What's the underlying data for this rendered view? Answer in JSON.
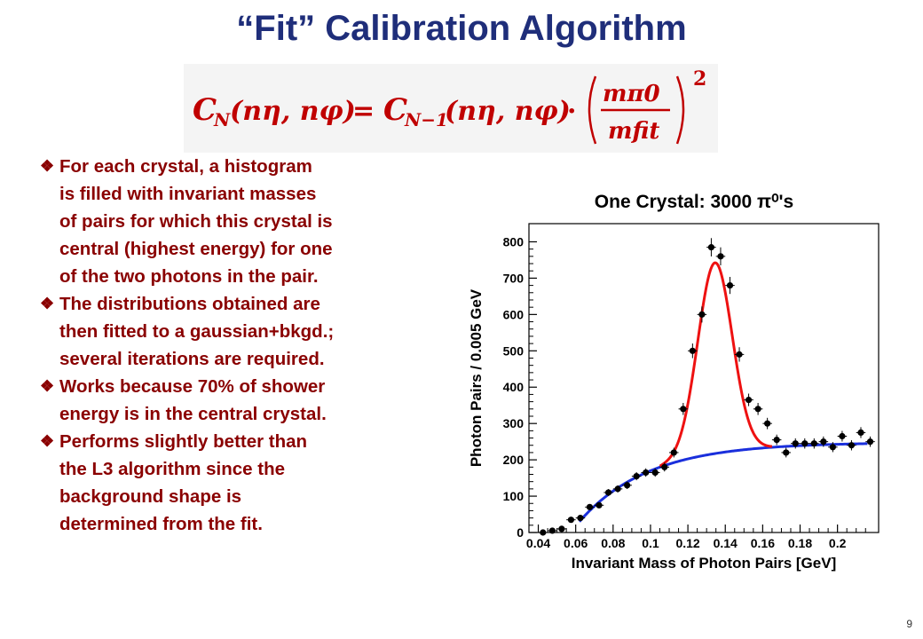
{
  "slide": {
    "title": "“Fit” Calibration Algorithm",
    "page_number": "9"
  },
  "formula": {
    "lhs_symbol": "C",
    "lhs_sub": "N",
    "args": "(nη, nφ)",
    "rhs_symbol": "C",
    "rhs_sub": "N−1",
    "mult": "·",
    "numerator": "mπ0",
    "denominator": "mfit",
    "exponent": "2",
    "color": "#c00000"
  },
  "bullets": [
    {
      "icon": "diamond-bullet-icon",
      "text": "For each crystal, a histogram\nis filled with invariant masses\nof pairs for which this crystal is\ncentral (highest energy) for one\nof the two photons in the pair."
    },
    {
      "icon": "diamond-bullet-icon",
      "text": "The distributions obtained are\nthen fitted to a gaussian+bkgd.;\nseveral iterations are required."
    },
    {
      "icon": "diamond-bullet-icon",
      "text": "Works because 70% of shower\nenergy is in the central crystal."
    },
    {
      "icon": "diamond-bullet-icon",
      "text": "Performs slightly better than\nthe L3 algorithm since the\nbackground shape is\ndetermined from the fit."
    }
  ],
  "chart_data": {
    "type": "scatter",
    "title": "One Crystal: 3000 π⁰'s",
    "xlabel": "Invariant Mass of Photon Pairs [GeV]",
    "ylabel": "Photon Pairs / 0.005 GeV",
    "xlim": [
      0.035,
      0.222
    ],
    "ylim": [
      0,
      850
    ],
    "x_ticks": [
      0.04,
      0.06,
      0.08,
      0.1,
      0.12,
      0.14,
      0.16,
      0.18,
      0.2
    ],
    "x_tick_labels": [
      "0.04",
      "0.06",
      "0.08",
      "0.1",
      "0.12",
      "0.14",
      "0.16",
      "0.18",
      "0.2"
    ],
    "y_ticks": [
      0,
      100,
      200,
      300,
      400,
      500,
      600,
      700,
      800
    ],
    "y_tick_labels": [
      "0",
      "100",
      "200",
      "300",
      "400",
      "500",
      "600",
      "700",
      "800"
    ],
    "grid": false,
    "points": {
      "x": [
        0.0425,
        0.0475,
        0.0525,
        0.0575,
        0.0625,
        0.0675,
        0.0725,
        0.0775,
        0.0825,
        0.0875,
        0.0925,
        0.0975,
        0.1025,
        0.1075,
        0.1125,
        0.1175,
        0.1225,
        0.1275,
        0.1325,
        0.1375,
        0.1425,
        0.1475,
        0.1525,
        0.1575,
        0.1625,
        0.1675,
        0.1725,
        0.1775,
        0.1825,
        0.1875,
        0.1925,
        0.1975,
        0.2025,
        0.2075,
        0.2125,
        0.2175
      ],
      "y": [
        0,
        5,
        10,
        35,
        40,
        70,
        75,
        110,
        120,
        130,
        155,
        165,
        165,
        180,
        220,
        340,
        500,
        600,
        785,
        760,
        680,
        490,
        365,
        340,
        300,
        255,
        220,
        245,
        245,
        245,
        250,
        235,
        265,
        240,
        275,
        250
      ],
      "color": "#000000"
    },
    "series": [
      {
        "name": "",
        "curve": "gaussian+background",
        "color": "#ee1111",
        "x_range": [
          0.105,
          0.165
        ]
      },
      {
        "name": "",
        "curve": "background",
        "color": "#1a2fdc",
        "x_range": [
          0.062,
          0.216
        ]
      }
    ],
    "fit_model": {
      "gauss_amplitude": 525,
      "gauss_mean": 0.1345,
      "gauss_sigma": 0.0092,
      "background_plateau": 248,
      "background_start_x": 0.062,
      "background_start_y": 30,
      "background_scale": 0.037
    }
  }
}
